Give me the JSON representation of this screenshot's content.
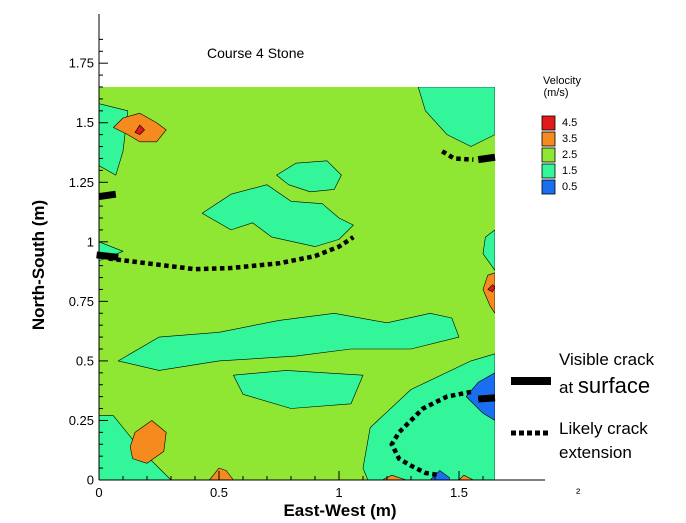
{
  "chart_data": {
    "type": "heatmap",
    "title": "Course 4 Stone",
    "xlabel": "East-West (m)",
    "ylabel": "North-South (m)",
    "xlim": [
      0,
      1.65
    ],
    "ylim": [
      0,
      1.65
    ],
    "xticks": [
      "0",
      "0.5",
      "1",
      "1.5"
    ],
    "yticks": [
      "0",
      "0.25",
      "0.5",
      "0.75",
      "1",
      "1.25",
      "1.5",
      "1.75"
    ],
    "colorbar": {
      "title_line1": "Velocity",
      "title_line2": "(m/s)",
      "levels": [
        {
          "label": "4.5",
          "color": "#e31a1c"
        },
        {
          "label": "3.5",
          "color": "#f58a1f"
        },
        {
          "label": "2.5",
          "color": "#8fe633"
        },
        {
          "label": "1.5",
          "color": "#33f59a"
        },
        {
          "label": "0.5",
          "color": "#1a6ff0"
        }
      ]
    },
    "background_velocity": 2.5,
    "regions": [
      {
        "velocity": 1.5,
        "points": [
          [
            0.08,
            0.5
          ],
          [
            0.25,
            0.6
          ],
          [
            0.5,
            0.62
          ],
          [
            0.75,
            0.67
          ],
          [
            0.98,
            0.7
          ],
          [
            1.2,
            0.66
          ],
          [
            1.38,
            0.7
          ],
          [
            1.47,
            0.68
          ],
          [
            1.5,
            0.6
          ],
          [
            1.3,
            0.55
          ],
          [
            1.05,
            0.55
          ],
          [
            0.82,
            0.52
          ],
          [
            0.5,
            0.5
          ],
          [
            0.25,
            0.46
          ]
        ]
      },
      {
        "velocity": 1.5,
        "points": [
          [
            0.56,
            0.44
          ],
          [
            0.78,
            0.46
          ],
          [
            1.1,
            0.44
          ],
          [
            1.05,
            0.32
          ],
          [
            0.8,
            0.3
          ],
          [
            0.6,
            0.36
          ]
        ]
      },
      {
        "velocity": 1.5,
        "points": [
          [
            1.1,
            0.05
          ],
          [
            1.13,
            0.22
          ],
          [
            1.3,
            0.38
          ],
          [
            1.55,
            0.5
          ],
          [
            1.65,
            0.53
          ],
          [
            1.65,
            0
          ],
          [
            1.12,
            0
          ]
        ]
      },
      {
        "velocity": 1.5,
        "points": [
          [
            0.06,
            0.27
          ],
          [
            0.18,
            0.12
          ],
          [
            0.3,
            0.0
          ],
          [
            0.0,
            0.0
          ],
          [
            0.0,
            0.27
          ]
        ]
      },
      {
        "velocity": 1.5,
        "points": [
          [
            1.33,
            1.65
          ],
          [
            1.36,
            1.55
          ],
          [
            1.45,
            1.45
          ],
          [
            1.55,
            1.4
          ],
          [
            1.65,
            1.45
          ],
          [
            1.65,
            1.65
          ]
        ]
      },
      {
        "velocity": 1.5,
        "points": [
          [
            0.0,
            1.32
          ],
          [
            0.07,
            1.28
          ],
          [
            0.1,
            1.38
          ],
          [
            0.12,
            1.55
          ],
          [
            0.0,
            1.58
          ]
        ]
      },
      {
        "velocity": 1.5,
        "points": [
          [
            0.0,
            0.92
          ],
          [
            0.1,
            0.96
          ],
          [
            0.0,
            1.0
          ]
        ]
      },
      {
        "velocity": 1.5,
        "points": [
          [
            1.6,
            0.95
          ],
          [
            1.65,
            0.88
          ],
          [
            1.65,
            1.05
          ],
          [
            1.61,
            1.02
          ]
        ]
      },
      {
        "velocity": 1.5,
        "points": [
          [
            0.43,
            1.12
          ],
          [
            0.55,
            1.05
          ],
          [
            0.64,
            1.08
          ],
          [
            0.72,
            1.02
          ],
          [
            0.9,
            0.98
          ],
          [
            1.0,
            1.01
          ],
          [
            1.06,
            1.07
          ],
          [
            1.0,
            1.1
          ],
          [
            0.93,
            1.16
          ],
          [
            0.8,
            1.17
          ],
          [
            0.7,
            1.24
          ],
          [
            0.55,
            1.2
          ]
        ]
      },
      {
        "velocity": 1.5,
        "points": [
          [
            0.74,
            1.28
          ],
          [
            0.82,
            1.33
          ],
          [
            0.95,
            1.34
          ],
          [
            1.01,
            1.28
          ],
          [
            0.98,
            1.22
          ],
          [
            0.88,
            1.21
          ],
          [
            0.79,
            1.24
          ]
        ]
      },
      {
        "velocity": 3.5,
        "points": [
          [
            0.06,
            1.48
          ],
          [
            0.12,
            1.45
          ],
          [
            0.17,
            1.42
          ],
          [
            0.24,
            1.42
          ],
          [
            0.28,
            1.47
          ],
          [
            0.24,
            1.5
          ],
          [
            0.17,
            1.54
          ],
          [
            0.1,
            1.52
          ]
        ]
      },
      {
        "velocity": 4.5,
        "points": [
          [
            0.15,
            1.46
          ],
          [
            0.17,
            1.45
          ],
          [
            0.19,
            1.47
          ],
          [
            0.17,
            1.49
          ]
        ]
      },
      {
        "velocity": 3.5,
        "points": [
          [
            1.6,
            0.8
          ],
          [
            1.63,
            0.73
          ],
          [
            1.65,
            0.7
          ],
          [
            1.65,
            0.87
          ],
          [
            1.62,
            0.86
          ]
        ]
      },
      {
        "velocity": 4.5,
        "points": [
          [
            1.62,
            0.8
          ],
          [
            1.64,
            0.79
          ],
          [
            1.65,
            0.81
          ],
          [
            1.64,
            0.82
          ]
        ]
      },
      {
        "velocity": 3.5,
        "points": [
          [
            0.14,
            0.09
          ],
          [
            0.2,
            0.07
          ],
          [
            0.27,
            0.12
          ],
          [
            0.28,
            0.2
          ],
          [
            0.22,
            0.25
          ],
          [
            0.15,
            0.2
          ],
          [
            0.13,
            0.14
          ]
        ]
      },
      {
        "velocity": 3.5,
        "points": [
          [
            0.46,
            0.0
          ],
          [
            0.5,
            0.05
          ],
          [
            0.53,
            0.04
          ],
          [
            0.56,
            0.0
          ]
        ]
      },
      {
        "velocity": 3.5,
        "points": [
          [
            1.18,
            0.0
          ],
          [
            1.22,
            0.02
          ],
          [
            1.28,
            0.0
          ]
        ]
      },
      {
        "velocity": 3.5,
        "points": [
          [
            1.5,
            0.0
          ],
          [
            1.52,
            0.02
          ],
          [
            1.56,
            0.0
          ]
        ]
      },
      {
        "velocity": 0.5,
        "points": [
          [
            1.53,
            0.35
          ],
          [
            1.6,
            0.28
          ],
          [
            1.65,
            0.25
          ],
          [
            1.65,
            0.45
          ],
          [
            1.58,
            0.41
          ]
        ]
      },
      {
        "velocity": 0.5,
        "points": [
          [
            1.38,
            0.0
          ],
          [
            1.42,
            0.04
          ],
          [
            1.46,
            0.01
          ],
          [
            1.46,
            0.0
          ]
        ]
      }
    ],
    "visible_cracks": [
      [
        [
          0.0,
          1.19
        ],
        [
          0.07,
          1.2
        ]
      ],
      [
        [
          -0.01,
          0.945
        ],
        [
          0.08,
          0.935
        ]
      ],
      [
        [
          1.58,
          1.345
        ],
        [
          1.65,
          1.355
        ]
      ],
      [
        [
          1.58,
          0.34
        ],
        [
          1.65,
          0.345
        ]
      ]
    ],
    "likely_cracks": [
      [
        [
          0.04,
          0.93
        ],
        [
          0.2,
          0.91
        ],
        [
          0.4,
          0.885
        ],
        [
          0.55,
          0.89
        ],
        [
          0.75,
          0.91
        ],
        [
          0.9,
          0.94
        ],
        [
          1.0,
          0.98
        ],
        [
          1.06,
          1.02
        ]
      ],
      [
        [
          1.43,
          1.38
        ],
        [
          1.48,
          1.35
        ],
        [
          1.56,
          1.345
        ]
      ],
      [
        [
          1.55,
          0.37
        ],
        [
          1.45,
          0.35
        ],
        [
          1.35,
          0.3
        ],
        [
          1.25,
          0.2
        ],
        [
          1.22,
          0.15
        ],
        [
          1.25,
          0.09
        ],
        [
          1.3,
          0.06
        ],
        [
          1.36,
          0.03
        ],
        [
          1.42,
          0.02
        ]
      ]
    ],
    "key": {
      "visible_line1": "Visible crack",
      "visible_line2a": "at ",
      "visible_line2b": "surface",
      "likely_line1": "Likely crack",
      "likely_line2": "extension"
    },
    "corner_glyph": "²"
  }
}
